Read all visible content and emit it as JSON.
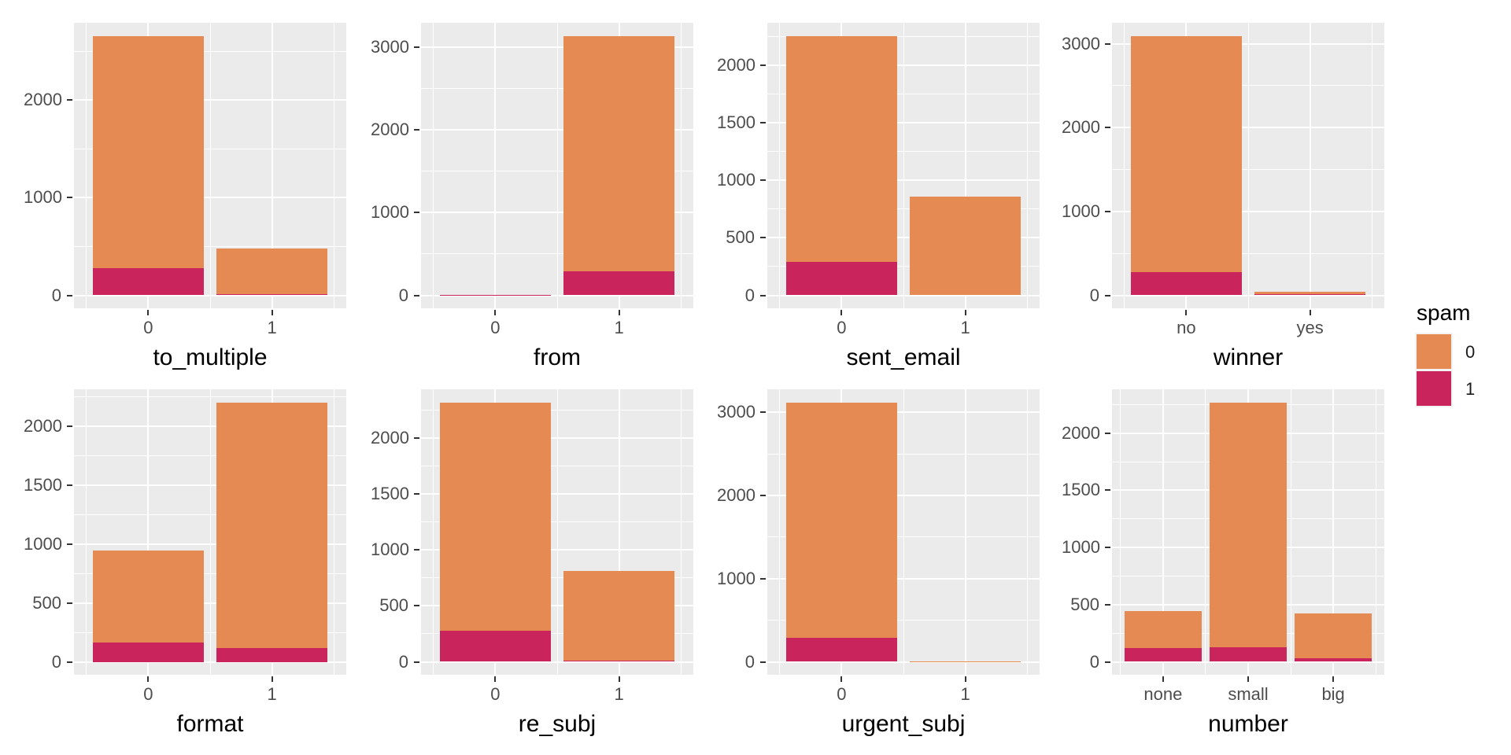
{
  "figure": {
    "background": "#FFFFFF",
    "panel_background": "#EBEBEB",
    "gridline_color": "#FFFFFF",
    "tick_mark_color": "#333333",
    "tick_label_color": "#4D4D4D",
    "axis_title_color": "#000000"
  },
  "colors": {
    "0": "#E68A54",
    "1": "#C9255C"
  },
  "legend": {
    "title": "spam",
    "items": [
      {
        "label": "0",
        "color_key": "0"
      },
      {
        "label": "1",
        "color_key": "1"
      }
    ]
  },
  "chart_data": [
    {
      "type": "bar",
      "stacked": true,
      "xlabel": "to_multiple",
      "categories": [
        "0",
        "1"
      ],
      "series": [
        {
          "name": "0",
          "values": [
            2380,
            470
          ]
        },
        {
          "name": "1",
          "values": [
            280,
            10
          ]
        }
      ],
      "totals": [
        2660,
        480
      ],
      "yticks": [
        0,
        1000,
        2000
      ],
      "ylim": [
        0,
        2660
      ],
      "grid": true,
      "legend_position": "right"
    },
    {
      "type": "bar",
      "stacked": true,
      "xlabel": "from",
      "categories": [
        "0",
        "1"
      ],
      "series": [
        {
          "name": "0",
          "values": [
            0,
            2850
          ]
        },
        {
          "name": "1",
          "values": [
            3,
            290
          ]
        }
      ],
      "totals": [
        3,
        3140
      ],
      "yticks": [
        0,
        1000,
        2000,
        3000
      ],
      "ylim": [
        0,
        3140
      ],
      "grid": true,
      "legend_position": "right"
    },
    {
      "type": "bar",
      "stacked": true,
      "xlabel": "sent_email",
      "categories": [
        "0",
        "1"
      ],
      "series": [
        {
          "name": "0",
          "values": [
            1970,
            860
          ]
        },
        {
          "name": "1",
          "values": [
            290,
            0
          ]
        }
      ],
      "totals": [
        2260,
        860
      ],
      "yticks": [
        0,
        500,
        1000,
        1500,
        2000
      ],
      "ylim": [
        0,
        2260
      ],
      "grid": true,
      "legend_position": "right"
    },
    {
      "type": "bar",
      "stacked": true,
      "xlabel": "winner",
      "categories": [
        "no",
        "yes"
      ],
      "series": [
        {
          "name": "0",
          "values": [
            2820,
            28
          ]
        },
        {
          "name": "1",
          "values": [
            275,
            16
          ]
        }
      ],
      "totals": [
        3095,
        44
      ],
      "yticks": [
        0,
        1000,
        2000,
        3000
      ],
      "ylim": [
        0,
        3095
      ],
      "grid": true,
      "legend_position": "right"
    },
    {
      "type": "bar",
      "stacked": true,
      "xlabel": "format",
      "categories": [
        "0",
        "1"
      ],
      "series": [
        {
          "name": "0",
          "values": [
            780,
            2085
          ]
        },
        {
          "name": "1",
          "values": [
            165,
            115
          ]
        }
      ],
      "totals": [
        945,
        2200
      ],
      "yticks": [
        0,
        500,
        1000,
        1500,
        2000
      ],
      "ylim": [
        0,
        2200
      ],
      "grid": true,
      "legend_position": "right"
    },
    {
      "type": "bar",
      "stacked": true,
      "xlabel": "re_subj",
      "categories": [
        "0",
        "1"
      ],
      "series": [
        {
          "name": "0",
          "values": [
            2045,
            805
          ]
        },
        {
          "name": "1",
          "values": [
            275,
            10
          ]
        }
      ],
      "totals": [
        2320,
        815
      ],
      "yticks": [
        0,
        500,
        1000,
        1500,
        2000
      ],
      "ylim": [
        0,
        2320
      ],
      "grid": true,
      "legend_position": "right"
    },
    {
      "type": "bar",
      "stacked": true,
      "xlabel": "urgent_subj",
      "categories": [
        "0",
        "1"
      ],
      "series": [
        {
          "name": "0",
          "values": [
            2835,
            3
          ]
        },
        {
          "name": "1",
          "values": [
            285,
            5
          ]
        }
      ],
      "totals": [
        3120,
        8
      ],
      "yticks": [
        0,
        1000,
        2000,
        3000
      ],
      "ylim": [
        0,
        3120
      ],
      "grid": true,
      "legend_position": "right"
    },
    {
      "type": "bar",
      "stacked": true,
      "xlabel": "number",
      "categories": [
        "none",
        "small",
        "big"
      ],
      "series": [
        {
          "name": "0",
          "values": [
            325,
            2140,
            390
          ]
        },
        {
          "name": "1",
          "values": [
            120,
            130,
            30
          ]
        }
      ],
      "totals": [
        445,
        2270,
        420
      ],
      "yticks": [
        0,
        500,
        1000,
        1500,
        2000
      ],
      "ylim": [
        0,
        2270
      ],
      "grid": true,
      "legend_position": "right"
    }
  ]
}
